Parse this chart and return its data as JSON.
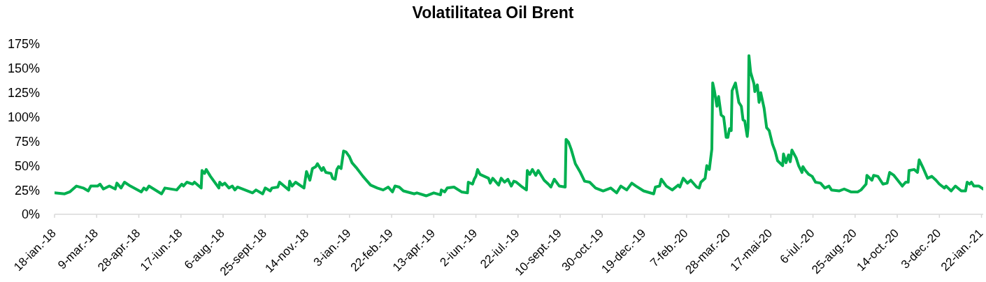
{
  "chart_data": {
    "type": "line",
    "title": "Volatilitatea Oil Brent",
    "x": [
      "2018-01-18",
      "2018-01-30",
      "2018-02-05",
      "2018-02-13",
      "2018-02-21",
      "2018-02-27",
      "2018-03-02",
      "2018-03-10",
      "2018-03-13",
      "2018-03-17",
      "2018-03-24",
      "2018-03-31",
      "2018-04-02",
      "2018-04-07",
      "2018-04-11",
      "2018-04-18",
      "2018-05-01",
      "2018-05-04",
      "2018-05-07",
      "2018-05-10",
      "2018-05-25",
      "2018-05-29",
      "2018-06-12",
      "2018-06-18",
      "2018-06-20",
      "2018-06-24",
      "2018-07-01",
      "2018-07-03",
      "2018-07-11",
      "2018-07-12",
      "2018-07-15",
      "2018-07-17",
      "2018-07-22",
      "2018-08-01",
      "2018-08-02",
      "2018-08-05",
      "2018-08-08",
      "2018-08-13",
      "2018-08-17",
      "2018-08-20",
      "2018-08-23",
      "2018-09-10",
      "2018-09-14",
      "2018-09-22",
      "2018-09-25",
      "2018-10-01",
      "2018-10-03",
      "2018-10-10",
      "2018-10-12",
      "2018-10-23",
      "2018-10-24",
      "2018-10-27",
      "2018-10-31",
      "2018-11-10",
      "2018-11-13",
      "2018-11-17",
      "2018-11-20",
      "2018-11-24",
      "2018-11-26",
      "2018-12-01",
      "2018-12-03",
      "2018-12-06",
      "2018-12-12",
      "2018-12-14",
      "2018-12-17",
      "2018-12-19",
      "2018-12-21",
      "2018-12-24",
      "2018-12-27",
      "2018-12-30",
      "2019-01-03",
      "2019-01-06",
      "2019-01-11",
      "2019-01-19",
      "2019-01-28",
      "2019-02-05",
      "2019-02-12",
      "2019-02-18",
      "2019-02-23",
      "2019-02-26",
      "2019-03-03",
      "2019-03-08",
      "2019-03-21",
      "2019-03-24",
      "2019-04-04",
      "2019-04-13",
      "2019-04-21",
      "2019-04-22",
      "2019-04-26",
      "2019-04-29",
      "2019-05-07",
      "2019-05-16",
      "2019-05-23",
      "2019-05-24",
      "2019-05-29",
      "2019-05-31",
      "2019-06-02",
      "2019-06-04",
      "2019-06-07",
      "2019-06-12",
      "2019-06-17",
      "2019-06-19",
      "2019-06-22",
      "2019-06-29",
      "2019-07-02",
      "2019-07-06",
      "2019-07-10",
      "2019-07-14",
      "2019-07-17",
      "2019-07-20",
      "2019-07-27",
      "2019-08-01",
      "2019-08-02",
      "2019-08-05",
      "2019-08-08",
      "2019-08-12",
      "2019-08-15",
      "2019-08-22",
      "2019-08-27",
      "2019-08-30",
      "2019-09-03",
      "2019-09-09",
      "2019-09-16",
      "2019-09-17",
      "2019-09-20",
      "2019-09-23",
      "2019-09-28",
      "2019-10-04",
      "2019-10-09",
      "2019-10-15",
      "2019-10-22",
      "2019-10-31",
      "2019-11-09",
      "2019-11-16",
      "2019-11-21",
      "2019-11-28",
      "2019-12-04",
      "2019-12-09",
      "2019-12-18",
      "2019-12-30",
      "2020-01-01",
      "2020-01-06",
      "2020-01-08",
      "2020-01-14",
      "2020-01-21",
      "2020-01-28",
      "2020-01-30",
      "2020-02-03",
      "2020-02-08",
      "2020-02-12",
      "2020-02-19",
      "2020-02-22",
      "2020-02-24",
      "2020-02-29",
      "2020-03-02",
      "2020-03-05",
      "2020-03-08",
      "2020-03-09",
      "2020-03-11",
      "2020-03-14",
      "2020-03-16",
      "2020-03-19",
      "2020-03-22",
      "2020-03-25",
      "2020-03-27",
      "2020-03-29",
      "2020-03-31",
      "2020-04-01",
      "2020-04-05",
      "2020-04-09",
      "2020-04-12",
      "2020-04-14",
      "2020-04-16",
      "2020-04-19",
      "2020-04-20",
      "2020-04-21",
      "2020-04-23",
      "2020-04-27",
      "2020-04-28",
      "2020-05-01",
      "2020-05-03",
      "2020-05-05",
      "2020-05-08",
      "2020-05-09",
      "2020-05-12",
      "2020-05-15",
      "2020-05-19",
      "2020-05-22",
      "2020-05-25",
      "2020-05-31",
      "2020-06-01",
      "2020-06-04",
      "2020-06-07",
      "2020-06-09",
      "2020-06-11",
      "2020-06-16",
      "2020-06-19",
      "2020-06-23",
      "2020-06-24",
      "2020-06-27",
      "2020-07-01",
      "2020-07-05",
      "2020-07-09",
      "2020-07-15",
      "2020-07-20",
      "2020-07-25",
      "2020-07-28",
      "2020-08-06",
      "2020-08-12",
      "2020-08-20",
      "2020-08-28",
      "2020-09-01",
      "2020-09-07",
      "2020-09-08",
      "2020-09-14",
      "2020-09-16",
      "2020-09-21",
      "2020-09-27",
      "2020-10-02",
      "2020-10-05",
      "2020-10-10",
      "2020-10-20",
      "2020-10-24",
      "2020-10-27",
      "2020-10-28",
      "2020-11-03",
      "2020-11-07",
      "2020-11-09",
      "2020-11-14",
      "2020-11-19",
      "2020-11-24",
      "2020-11-29",
      "2020-12-03",
      "2020-12-09",
      "2020-12-11",
      "2020-12-17",
      "2020-12-22",
      "2020-12-29",
      "2021-01-03",
      "2021-01-05",
      "2021-01-08",
      "2021-01-10",
      "2021-01-13",
      "2021-01-19",
      "2021-01-24"
    ],
    "series": [
      {
        "color": "#00b050",
        "values": [
          22,
          21,
          23,
          29,
          27,
          24,
          29,
          29,
          31,
          26,
          29,
          26,
          32,
          27,
          33,
          29,
          23,
          27,
          25,
          29,
          21,
          27,
          25,
          31,
          29,
          33,
          31,
          33,
          27,
          45,
          42,
          46,
          39,
          27,
          33,
          30,
          32,
          27,
          29,
          25,
          28,
          22,
          25,
          21,
          27,
          24,
          27,
          28,
          33,
          25,
          34,
          29,
          33,
          27,
          44,
          35,
          47,
          49,
          52,
          45,
          48,
          43,
          42,
          37,
          36,
          46,
          49,
          47,
          65,
          64,
          59,
          53,
          48,
          39,
          30,
          27,
          25,
          28,
          23,
          29,
          28,
          24,
          21,
          22,
          19,
          22,
          20,
          25,
          23,
          27,
          28,
          23,
          22,
          33,
          31,
          36,
          39,
          46,
          41,
          39,
          37,
          32,
          37,
          30,
          37,
          33,
          36,
          29,
          34,
          33,
          28,
          25,
          45,
          41,
          46,
          40,
          45,
          35,
          31,
          28,
          36,
          29,
          28,
          77,
          74,
          67,
          52,
          43,
          34,
          33,
          27,
          24,
          27,
          22,
          29,
          25,
          32,
          29,
          24,
          21,
          28,
          29,
          36,
          29,
          25,
          30,
          28,
          37,
          32,
          35,
          28,
          27,
          33,
          37,
          50,
          46,
          67,
          135,
          127,
          111,
          121,
          102,
          100,
          79,
          79,
          88,
          86,
          127,
          135,
          115,
          111,
          97,
          96,
          80,
          89,
          163,
          146,
          134,
          126,
          133,
          115,
          125,
          113,
          109,
          89,
          86,
          72,
          65,
          55,
          50,
          62,
          53,
          61,
          54,
          66,
          58,
          50,
          43,
          49,
          45,
          41,
          39,
          33,
          32,
          27,
          29,
          25,
          24,
          26,
          23,
          23,
          25,
          31,
          40,
          35,
          40,
          39,
          31,
          32,
          43,
          40,
          29,
          33,
          33,
          45,
          46,
          43,
          56,
          47,
          37,
          39,
          35,
          31,
          27,
          29,
          24,
          29,
          24,
          24,
          33,
          31,
          33,
          29,
          29,
          26
        ]
      }
    ],
    "xlim": [
      "2018-01-18",
      "2021-01-24"
    ],
    "xticks": [
      {
        "value": "2018-01-18",
        "label": "18-ian.-18"
      },
      {
        "value": "2018-03-09",
        "label": "9-mar.-18"
      },
      {
        "value": "2018-04-28",
        "label": "28-apr.-18"
      },
      {
        "value": "2018-06-17",
        "label": "17-iun.-18"
      },
      {
        "value": "2018-08-06",
        "label": "6-aug.-18"
      },
      {
        "value": "2018-09-25",
        "label": "25-sept.-18"
      },
      {
        "value": "2018-11-14",
        "label": "14-nov.-18"
      },
      {
        "value": "2019-01-03",
        "label": "3-ian.-19"
      },
      {
        "value": "2019-02-22",
        "label": "22-feb.-19"
      },
      {
        "value": "2019-04-13",
        "label": "13-apr.-19"
      },
      {
        "value": "2019-06-02",
        "label": "2-iun.-19"
      },
      {
        "value": "2019-07-22",
        "label": "22-iul.-19"
      },
      {
        "value": "2019-09-10",
        "label": "10-sept.-19"
      },
      {
        "value": "2019-10-30",
        "label": "30-oct.-19"
      },
      {
        "value": "2019-12-19",
        "label": "19-dec.-19"
      },
      {
        "value": "2020-02-07",
        "label": "7-feb.-20"
      },
      {
        "value": "2020-03-28",
        "label": "28-mar.-20"
      },
      {
        "value": "2020-05-17",
        "label": "17-mai-20"
      },
      {
        "value": "2020-07-06",
        "label": "6-iul.-20"
      },
      {
        "value": "2020-08-25",
        "label": "25-aug.-20"
      },
      {
        "value": "2020-10-14",
        "label": "14-oct.-20"
      },
      {
        "value": "2020-12-03",
        "label": "3-dec.-20"
      },
      {
        "value": "2021-01-22",
        "label": "22-ian.-21"
      }
    ],
    "ylim": [
      0,
      175
    ],
    "yticks": [
      {
        "value": 0,
        "label": "0%"
      },
      {
        "value": 25,
        "label": "25%"
      },
      {
        "value": 50,
        "label": "50%"
      },
      {
        "value": 75,
        "label": "75%"
      },
      {
        "value": 100,
        "label": "100%"
      },
      {
        "value": 125,
        "label": "125%"
      },
      {
        "value": 150,
        "label": "150%"
      },
      {
        "value": 175,
        "label": "175%"
      }
    ]
  }
}
